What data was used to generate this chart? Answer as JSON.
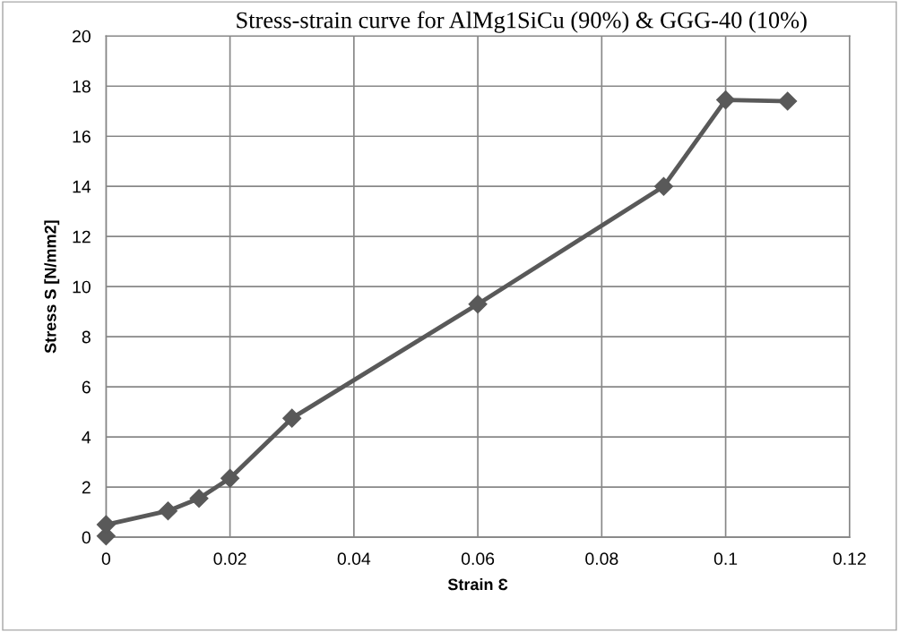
{
  "chart_data": {
    "type": "line",
    "title": "Stress-strain curve for AlMg1SiCu (90%) & GGG-40 (10%)",
    "xlabel": "Strain Ɛ",
    "ylabel": "Stress S [N/mm2]",
    "x": [
      0,
      0,
      0.01,
      0.015,
      0.02,
      0.03,
      0.06,
      0.09,
      0.1,
      0.11
    ],
    "series": [
      {
        "color": "#595959",
        "values": [
          0.05,
          0.5,
          1.05,
          1.55,
          2.35,
          4.75,
          9.3,
          14.0,
          17.45,
          17.4
        ]
      }
    ],
    "xlim": [
      0,
      0.12
    ],
    "xticks": [
      0,
      0.02,
      0.04,
      0.06,
      0.08,
      0.1,
      0.12
    ],
    "ylim": [
      0,
      20
    ],
    "yticks": [
      0,
      2,
      4,
      6,
      8,
      10,
      12,
      14,
      16,
      18,
      20
    ],
    "grid": true,
    "marker": "diamond",
    "line_style": "solid",
    "legend": false
  }
}
